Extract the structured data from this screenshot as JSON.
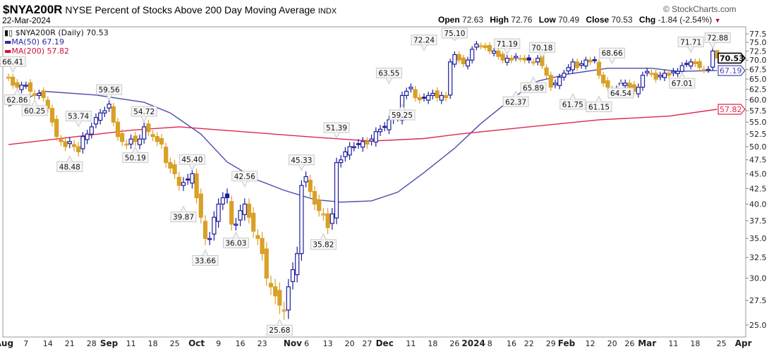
{
  "header": {
    "symbol": "$NYA200R",
    "name": "NYSE Percent of Stocks Above 200 Day Moving Average",
    "exchange": "INDX",
    "date": "22-Mar-2024",
    "copyright": "© StockCharts.com",
    "open_label": "Open",
    "open": "72.63",
    "high_label": "High",
    "high": "72.76",
    "low_label": "Low",
    "low": "70.49",
    "close_label": "Close",
    "close": "70.53",
    "chg_label": "Chg",
    "chg": "-1.84 (-2.54%)"
  },
  "legend": {
    "main": "$NYA200R (Daily) 70.53",
    "ma50": "MA(50) 67.19",
    "ma200": "MA(200) 57.82"
  },
  "colors": {
    "up": "#1c1c9c",
    "down": "#d9a027",
    "ma50": "#4a4ab0",
    "ma200": "#e0244c"
  },
  "chart_data": {
    "type": "candlestick",
    "title": "$NYA200R NYSE Percent of Stocks Above 200 Day Moving Average",
    "yscale": "log",
    "ylim": [
      25,
      77.5
    ],
    "yticks": [
      "77.5",
      "75.0",
      "72.5",
      "70.0",
      "67.5",
      "65.0",
      "62.5",
      "60.0",
      "57.5",
      "55.0",
      "52.5",
      "50.0",
      "47.5",
      "45.0",
      "42.5",
      "40.0",
      "37.5",
      "35.0",
      "32.5",
      "30.0",
      "27.5",
      "25.0"
    ],
    "weekly_closes": [
      [
        65.5,
        63.5,
        63,
        63.5
      ],
      [
        63.5,
        62,
        61,
        61.5,
        60.5
      ],
      [
        58,
        55,
        52,
        51,
        50
      ],
      [
        51,
        50,
        49,
        52,
        52.5
      ],
      [
        54,
        56,
        57,
        57.5,
        59
      ],
      [
        55,
        52,
        51,
        50.5
      ],
      [
        51.5,
        51,
        51.5,
        54,
        53
      ],
      [
        52,
        51,
        50.5,
        47,
        46
      ],
      [
        45,
        43,
        43.5,
        44,
        45
      ],
      [
        41,
        38,
        35,
        35,
        38
      ],
      [
        40,
        41,
        41,
        37,
        37
      ],
      [
        39,
        40,
        38,
        36,
        35
      ],
      [
        33,
        30,
        29,
        28,
        27
      ],
      [
        26.5,
        29,
        31,
        33,
        43
      ],
      [
        44.5,
        42,
        40,
        39,
        38.5
      ],
      [
        36.5,
        38.5,
        47,
        47.5,
        49
      ],
      [
        50,
        50,
        50.5,
        51
      ],
      [
        50.5,
        51.5,
        53,
        53.5,
        54
      ],
      [
        55.5,
        56,
        56,
        61,
        62
      ],
      [
        63,
        60.5,
        60,
        60.5,
        61
      ],
      [
        61.5,
        60.5,
        61,
        60.5,
        69.5
      ],
      [
        71.5,
        70,
        69,
        70
      ],
      [
        73,
        74.5,
        74,
        73.5
      ],
      [
        72.5,
        72.5,
        71,
        70,
        70.5
      ],
      [
        70,
        71,
        70.5,
        70
      ],
      [
        70,
        69.5,
        70.5,
        68.5,
        66
      ],
      [
        63,
        64,
        65.5,
        66.5,
        68
      ],
      [
        69.5,
        68,
        69,
        70,
        69.5
      ],
      [
        70,
        66,
        64,
        63,
        62.5
      ],
      [
        62.5,
        64,
        64,
        63
      ],
      [
        62,
        63,
        66,
        67,
        66.5
      ],
      [
        65,
        66,
        66.5,
        66,
        67
      ],
      [
        67,
        68.5,
        69,
        69.5,
        69
      ],
      [
        68,
        67.5,
        67.5,
        72.5,
        70.53
      ]
    ],
    "last_candle": {
      "open": 72.63,
      "high": 72.76,
      "low": 70.49,
      "close": 70.53
    },
    "ma50": [
      [
        0,
        58.5
      ],
      [
        4,
        60.3
      ],
      [
        8,
        62
      ],
      [
        20,
        61.1
      ],
      [
        31,
        59.4
      ],
      [
        37,
        57
      ],
      [
        44,
        52.5
      ],
      [
        50,
        47.1
      ],
      [
        57,
        43.9
      ],
      [
        63,
        42.2
      ],
      [
        70,
        40.7
      ],
      [
        76,
        40.3
      ],
      [
        83,
        40.5
      ],
      [
        89,
        41.9
      ],
      [
        95,
        45.2
      ],
      [
        102,
        49.7
      ],
      [
        108,
        54.7
      ],
      [
        115,
        60.2
      ],
      [
        121,
        64.5
      ],
      [
        128,
        66.3
      ],
      [
        137,
        67.8
      ],
      [
        147,
        67.8
      ],
      [
        153,
        67
      ],
      [
        162,
        67.19
      ]
    ],
    "ma200": [
      [
        0,
        50.4
      ],
      [
        28,
        53.3
      ],
      [
        39,
        54
      ],
      [
        71,
        51.8
      ],
      [
        83,
        51.1
      ],
      [
        95,
        51.6
      ],
      [
        103,
        52.5
      ],
      [
        119,
        54
      ],
      [
        135,
        55.5
      ],
      [
        151,
        56.3
      ],
      [
        162,
        57.82
      ]
    ],
    "annotations": [
      {
        "i": 1,
        "v": "66.41",
        "pos": "above"
      },
      {
        "i": 2,
        "v": "62.86",
        "pos": "below"
      },
      {
        "i": 6,
        "v": "60.25",
        "pos": "below"
      },
      {
        "i": 16,
        "v": "53.74",
        "pos": "above"
      },
      {
        "i": 14,
        "v": "48.48",
        "pos": "below"
      },
      {
        "i": 23,
        "v": "59.56",
        "pos": "above"
      },
      {
        "i": 29,
        "v": "50.19",
        "pos": "below"
      },
      {
        "i": 31,
        "v": "54.72",
        "pos": "above"
      },
      {
        "i": 42,
        "v": "45.40",
        "pos": "above"
      },
      {
        "i": 40,
        "v": "39.87",
        "pos": "below"
      },
      {
        "i": 45,
        "v": "33.66",
        "pos": "below"
      },
      {
        "i": 52,
        "v": "36.03",
        "pos": "below"
      },
      {
        "i": 54,
        "v": "42.56",
        "pos": "above"
      },
      {
        "i": 62,
        "v": "25.68",
        "pos": "below"
      },
      {
        "i": 67,
        "v": "45.33",
        "pos": "above"
      },
      {
        "i": 72,
        "v": "35.82",
        "pos": "below"
      },
      {
        "i": 75,
        "v": "51.39",
        "pos": "above"
      },
      {
        "i": 87,
        "v": "63.55",
        "pos": "above"
      },
      {
        "i": 90,
        "v": "59.25",
        "pos": "below"
      },
      {
        "i": 95,
        "v": "72.24",
        "pos": "above"
      },
      {
        "i": 102,
        "v": "75.10",
        "pos": "above"
      },
      {
        "i": 114,
        "v": "71.19",
        "pos": "above"
      },
      {
        "i": 116,
        "v": "62.37",
        "pos": "below"
      },
      {
        "i": 122,
        "v": "70.18",
        "pos": "above"
      },
      {
        "i": 120,
        "v": "65.89",
        "pos": "below"
      },
      {
        "i": 129,
        "v": "61.75",
        "pos": "below"
      },
      {
        "i": 138,
        "v": "68.66",
        "pos": "above"
      },
      {
        "i": 135,
        "v": "61.15",
        "pos": "below"
      },
      {
        "i": 140,
        "v": "64.54",
        "pos": "below"
      },
      {
        "i": 154,
        "v": "67.01",
        "pos": "below"
      },
      {
        "i": 156,
        "v": "71.71",
        "pos": "above"
      },
      {
        "i": 161,
        "v": "72.88",
        "pos": "above"
      }
    ],
    "value_tags": [
      {
        "label": "70.53",
        "v": 70.53,
        "series": "price"
      },
      {
        "label": "67.19",
        "v": 67.19,
        "series": "ma50"
      },
      {
        "label": "57.82",
        "v": 57.82,
        "series": "ma200"
      }
    ],
    "xticks": [
      {
        "label": "Aug",
        "i": -1,
        "bold": true
      },
      {
        "label": "7",
        "i": 4
      },
      {
        "label": "14",
        "i": 9
      },
      {
        "label": "21",
        "i": 14
      },
      {
        "label": "28",
        "i": 19
      },
      {
        "label": "Sep",
        "i": 23,
        "bold": true
      },
      {
        "label": "11",
        "i": 28
      },
      {
        "label": "18",
        "i": 33
      },
      {
        "label": "25",
        "i": 38
      },
      {
        "label": "Oct",
        "i": 43,
        "bold": true
      },
      {
        "label": "9",
        "i": 48
      },
      {
        "label": "16",
        "i": 53
      },
      {
        "label": "23",
        "i": 58
      },
      {
        "label": "Nov",
        "i": 65,
        "bold": true
      },
      {
        "label": "6",
        "i": 68
      },
      {
        "label": "13",
        "i": 73
      },
      {
        "label": "20",
        "i": 78
      },
      {
        "label": "27",
        "i": 82
      },
      {
        "label": "Dec",
        "i": 86,
        "bold": true
      },
      {
        "label": "11",
        "i": 92
      },
      {
        "label": "18",
        "i": 97
      },
      {
        "label": "26",
        "i": 102
      },
      {
        "label": "2024",
        "i": 106,
        "bold": true
      },
      {
        "label": "8",
        "i": 110
      },
      {
        "label": "16",
        "i": 115
      },
      {
        "label": "22",
        "i": 119
      },
      {
        "label": "29",
        "i": 124
      },
      {
        "label": "Feb",
        "i": 127,
        "bold": true
      },
      {
        "label": "12",
        "i": 133
      },
      {
        "label": "20",
        "i": 138
      },
      {
        "label": "26",
        "i": 142
      },
      {
        "label": "Mar",
        "i": 146,
        "bold": true
      },
      {
        "label": "11",
        "i": 152
      },
      {
        "label": "18",
        "i": 157
      },
      {
        "label": "25",
        "i": 163
      },
      {
        "label": "Apr",
        "i": 168,
        "bold": true
      }
    ]
  }
}
